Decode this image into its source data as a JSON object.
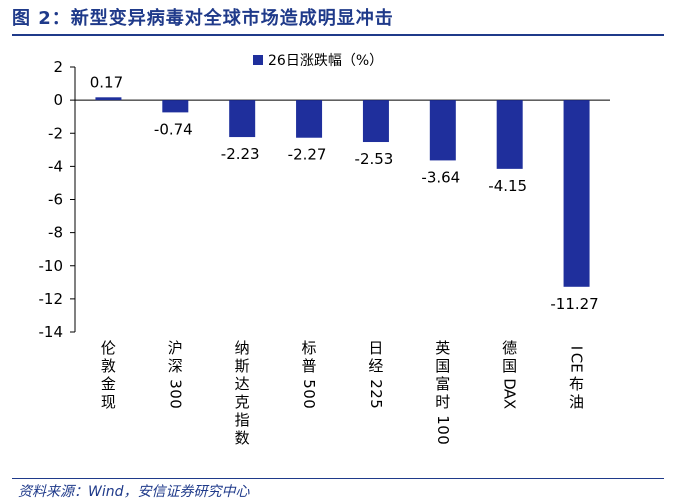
{
  "figure": {
    "title": "图 2：新型变异病毒对全球市场造成明显冲击",
    "source": "资料来源：Wind，安信证券研究中心"
  },
  "colors": {
    "bar": "#1f2f9c",
    "accent": "#1f3a8a"
  },
  "chart_data": {
    "type": "bar",
    "title": "",
    "categories": [
      "伦敦金现",
      "沪深300",
      "纳斯达克指数",
      "标普500",
      "日经225",
      "英国富时100",
      "德国DAX",
      "ICE 布油"
    ],
    "series": [
      {
        "name": "26日涨跌幅（%）",
        "values": [
          0.17,
          -0.74,
          -2.23,
          -2.27,
          -2.53,
          -3.64,
          -4.15,
          -11.27
        ]
      }
    ],
    "data_labels": [
      "0.17",
      "-0.74",
      "-2.23",
      "-2.27",
      "-2.53",
      "-3.64",
      "-4.15",
      "-11.27"
    ],
    "ylim": [
      -14,
      2
    ],
    "yticks": [
      2,
      0,
      -2,
      -4,
      -6,
      -8,
      -10,
      -12,
      -14
    ],
    "xlabel": "",
    "ylabel": "",
    "legend_position": "top-right",
    "grid": false
  }
}
